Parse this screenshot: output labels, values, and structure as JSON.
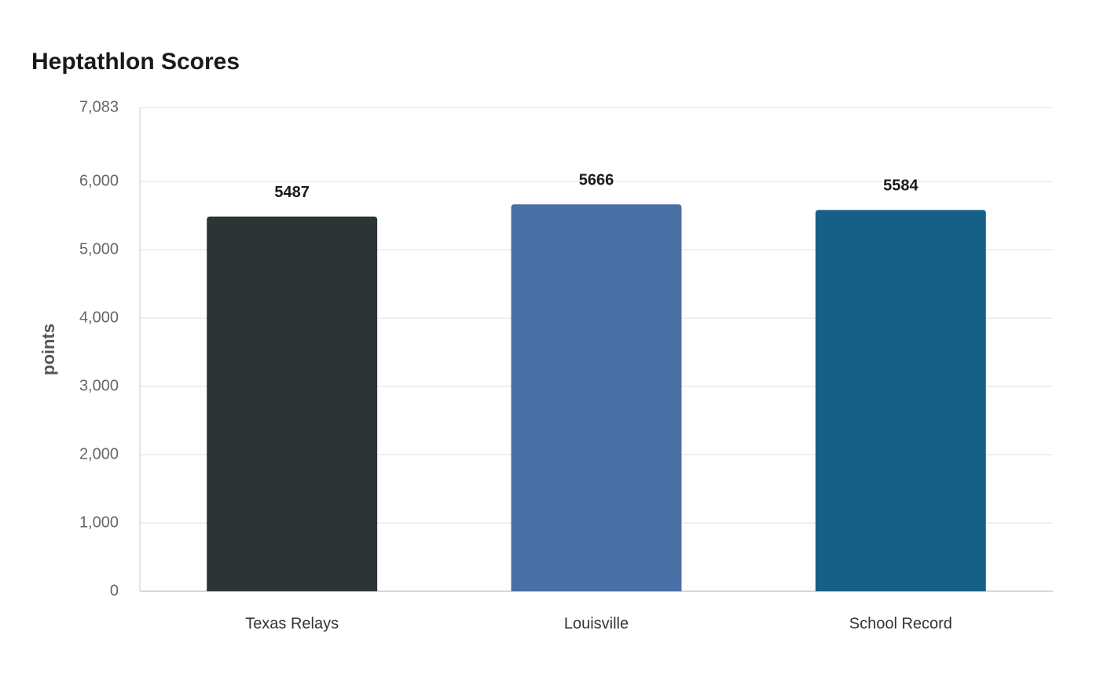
{
  "chart_data": {
    "type": "bar",
    "title": "Heptathlon Scores",
    "y_label": "points",
    "categories": [
      "Texas Relays",
      "Louisville",
      "School Record"
    ],
    "values": [
      5487,
      5666,
      5584
    ],
    "colors": [
      "#2d3436",
      "#4a6fa5",
      "#166088"
    ],
    "ylim": [
      0,
      7083
    ],
    "yticks": [
      0,
      {
        "value": 1000,
        "label": "1,000"
      },
      {
        "value": 2000,
        "label": "2,000"
      },
      {
        "value": 3000,
        "label": "3,000"
      },
      {
        "value": 4000,
        "label": "4,000"
      },
      {
        "value": 5000,
        "label": "5,000"
      },
      {
        "value": 6000,
        "label": "6,000"
      },
      {
        "value": 7083,
        "label": "7,083"
      }
    ],
    "grid": true
  }
}
